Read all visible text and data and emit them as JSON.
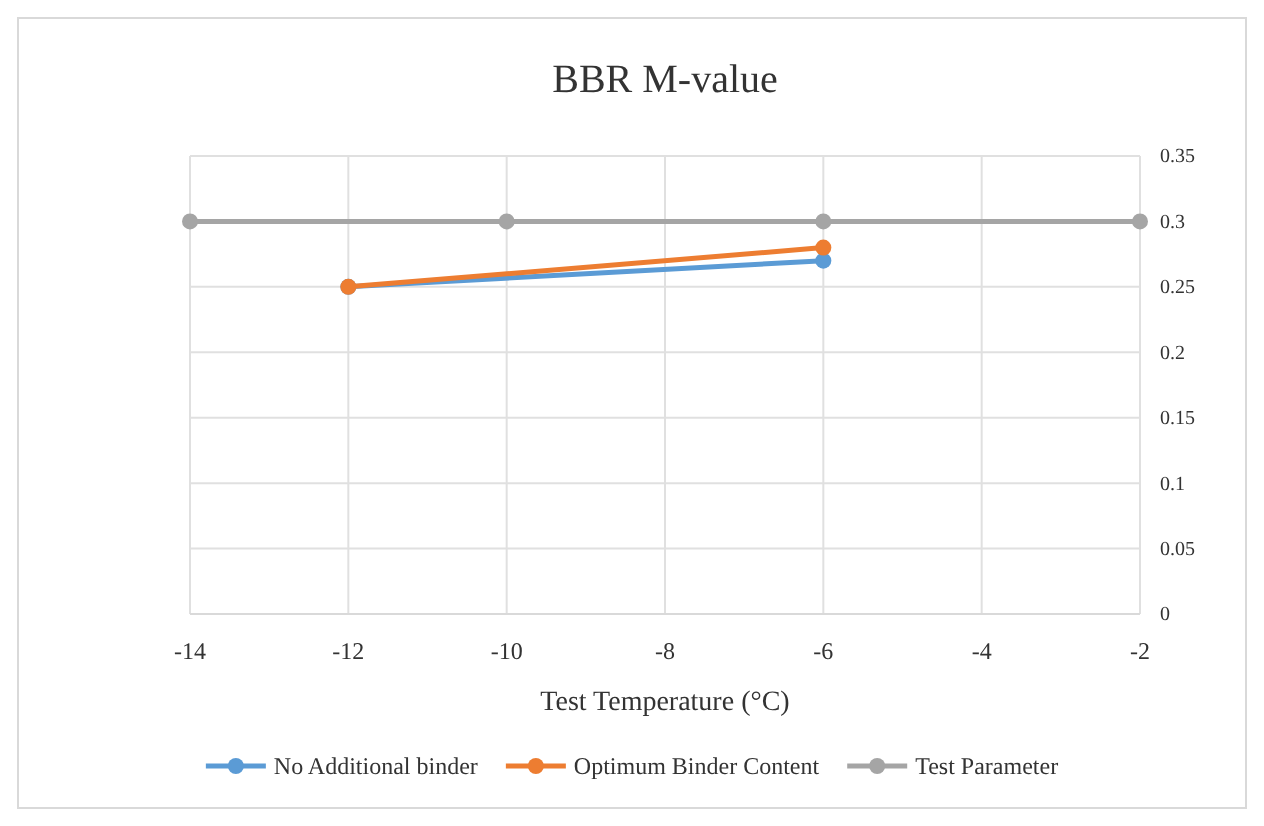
{
  "chart_data": {
    "type": "line",
    "title": "BBR M-value",
    "xlabel": "Test Temperature (°C)",
    "xlim": [
      -14,
      -2
    ],
    "xticks": [
      -14,
      -12,
      -10,
      -8,
      -6,
      -4,
      -2
    ],
    "ylim": [
      0,
      0.35
    ],
    "yticks": [
      0,
      0.05,
      0.1,
      0.15,
      0.2,
      0.25,
      0.3,
      0.35
    ],
    "grid": true,
    "legend": "bottom",
    "marker": "circle",
    "series": [
      {
        "name": "No Additional binder",
        "color": "#5b9bd5",
        "x": [
          -12,
          -6
        ],
        "values": [
          0.25,
          0.27
        ]
      },
      {
        "name": "Optimum Binder Content",
        "color": "#ed7d31",
        "x": [
          -12,
          -6
        ],
        "values": [
          0.25,
          0.28
        ]
      },
      {
        "name": "Test Parameter",
        "color": "#a5a5a5",
        "x": [
          -14,
          -10,
          -6,
          -2
        ],
        "values": [
          0.3,
          0.3,
          0.3,
          0.3
        ]
      }
    ]
  }
}
